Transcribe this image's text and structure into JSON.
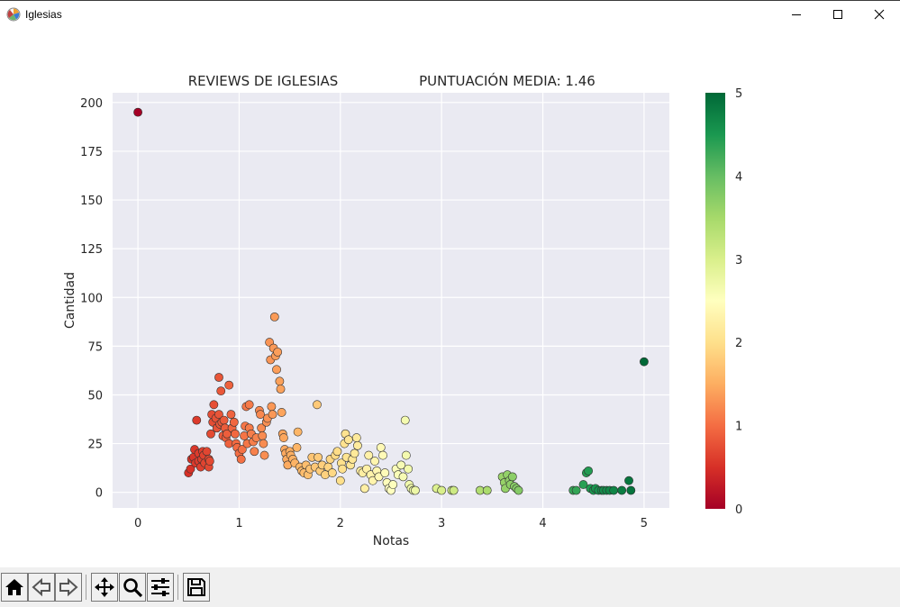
{
  "window": {
    "title": "Iglesias",
    "controls": [
      "minimize-icon",
      "maximize-icon",
      "close-icon"
    ]
  },
  "toolbar": {
    "buttons": [
      {
        "name": "home-icon"
      },
      {
        "name": "back-icon"
      },
      {
        "name": "forward-icon"
      },
      {
        "name": "pan-icon"
      },
      {
        "name": "zoom-icon"
      },
      {
        "name": "configure-subplots-icon"
      },
      {
        "name": "save-icon"
      }
    ]
  },
  "chart_data": {
    "type": "scatter",
    "title_left": "REVIEWS DE IGLESIAS",
    "title_right": "PUNTUACIÓN MEDIA: 1.46",
    "xlabel": "Notas",
    "ylabel": "Cantidad",
    "xlim": [
      -0.25,
      5.25
    ],
    "ylim": [
      -8,
      205
    ],
    "xticks": [
      0,
      1,
      2,
      3,
      4,
      5
    ],
    "yticks": [
      0,
      25,
      50,
      75,
      100,
      125,
      150,
      175,
      200
    ],
    "grid": true,
    "background": "#eaeaf2",
    "colormap": "RdYlGn",
    "colorbar": {
      "min": 0,
      "max": 5,
      "ticks": [
        0,
        1,
        2,
        3,
        4,
        5
      ]
    },
    "points": [
      [
        0.0,
        195
      ],
      [
        0.5,
        10
      ],
      [
        0.52,
        12
      ],
      [
        0.53,
        17
      ],
      [
        0.55,
        18
      ],
      [
        0.56,
        22
      ],
      [
        0.57,
        15
      ],
      [
        0.58,
        37
      ],
      [
        0.6,
        20
      ],
      [
        0.6,
        16
      ],
      [
        0.62,
        13
      ],
      [
        0.63,
        17
      ],
      [
        0.64,
        21
      ],
      [
        0.65,
        19
      ],
      [
        0.66,
        15
      ],
      [
        0.68,
        21
      ],
      [
        0.7,
        17
      ],
      [
        0.7,
        13
      ],
      [
        0.71,
        16
      ],
      [
        0.72,
        30
      ],
      [
        0.73,
        40
      ],
      [
        0.74,
        36
      ],
      [
        0.75,
        45
      ],
      [
        0.77,
        38
      ],
      [
        0.78,
        33
      ],
      [
        0.8,
        59
      ],
      [
        0.8,
        40
      ],
      [
        0.81,
        35
      ],
      [
        0.82,
        52
      ],
      [
        0.83,
        36
      ],
      [
        0.84,
        29
      ],
      [
        0.85,
        37
      ],
      [
        0.86,
        33
      ],
      [
        0.87,
        28
      ],
      [
        0.88,
        30
      ],
      [
        0.9,
        55
      ],
      [
        0.9,
        25
      ],
      [
        0.92,
        40
      ],
      [
        0.93,
        33
      ],
      [
        0.95,
        36
      ],
      [
        0.96,
        30
      ],
      [
        0.97,
        25
      ],
      [
        0.98,
        23
      ],
      [
        1.0,
        20
      ],
      [
        1.02,
        17
      ],
      [
        1.03,
        22
      ],
      [
        1.05,
        29
      ],
      [
        1.06,
        34
      ],
      [
        1.07,
        44
      ],
      [
        1.08,
        25
      ],
      [
        1.1,
        45
      ],
      [
        1.1,
        33
      ],
      [
        1.12,
        30
      ],
      [
        1.14,
        26
      ],
      [
        1.15,
        21
      ],
      [
        1.17,
        28
      ],
      [
        1.2,
        42
      ],
      [
        1.21,
        40
      ],
      [
        1.22,
        33
      ],
      [
        1.23,
        29
      ],
      [
        1.24,
        25
      ],
      [
        1.25,
        19
      ],
      [
        1.27,
        36
      ],
      [
        1.28,
        38
      ],
      [
        1.3,
        77
      ],
      [
        1.31,
        68
      ],
      [
        1.32,
        44
      ],
      [
        1.33,
        40
      ],
      [
        1.34,
        74
      ],
      [
        1.35,
        90
      ],
      [
        1.36,
        70
      ],
      [
        1.37,
        63
      ],
      [
        1.38,
        72
      ],
      [
        1.4,
        57
      ],
      [
        1.41,
        53
      ],
      [
        1.42,
        41
      ],
      [
        1.43,
        30
      ],
      [
        1.44,
        28
      ],
      [
        1.45,
        22
      ],
      [
        1.46,
        20
      ],
      [
        1.47,
        17
      ],
      [
        1.48,
        14
      ],
      [
        1.5,
        21
      ],
      [
        1.51,
        19
      ],
      [
        1.53,
        17
      ],
      [
        1.55,
        15
      ],
      [
        1.57,
        23
      ],
      [
        1.58,
        31
      ],
      [
        1.6,
        13
      ],
      [
        1.62,
        11
      ],
      [
        1.64,
        10
      ],
      [
        1.66,
        14
      ],
      [
        1.68,
        9
      ],
      [
        1.7,
        12
      ],
      [
        1.72,
        18
      ],
      [
        1.75,
        13
      ],
      [
        1.77,
        45
      ],
      [
        1.78,
        18
      ],
      [
        1.8,
        11
      ],
      [
        1.82,
        14
      ],
      [
        1.85,
        9
      ],
      [
        1.88,
        13
      ],
      [
        1.9,
        17
      ],
      [
        1.92,
        10
      ],
      [
        1.95,
        19
      ],
      [
        1.97,
        21
      ],
      [
        2.0,
        6
      ],
      [
        2.01,
        15
      ],
      [
        2.02,
        12
      ],
      [
        2.04,
        25
      ],
      [
        2.05,
        30
      ],
      [
        2.06,
        18
      ],
      [
        2.08,
        27
      ],
      [
        2.1,
        14
      ],
      [
        2.12,
        17
      ],
      [
        2.14,
        20
      ],
      [
        2.16,
        28
      ],
      [
        2.17,
        24
      ],
      [
        2.2,
        11
      ],
      [
        2.22,
        10
      ],
      [
        2.24,
        2
      ],
      [
        2.26,
        12
      ],
      [
        2.28,
        19
      ],
      [
        2.3,
        9
      ],
      [
        2.32,
        6
      ],
      [
        2.34,
        16
      ],
      [
        2.36,
        11
      ],
      [
        2.38,
        8
      ],
      [
        2.4,
        23
      ],
      [
        2.42,
        19
      ],
      [
        2.44,
        10
      ],
      [
        2.46,
        5
      ],
      [
        2.48,
        2
      ],
      [
        2.5,
        1
      ],
      [
        2.52,
        4
      ],
      [
        2.55,
        12
      ],
      [
        2.57,
        9
      ],
      [
        2.6,
        14
      ],
      [
        2.62,
        8
      ],
      [
        2.64,
        37
      ],
      [
        2.65,
        19
      ],
      [
        2.67,
        12
      ],
      [
        2.68,
        4
      ],
      [
        2.7,
        2
      ],
      [
        2.72,
        1
      ],
      [
        2.74,
        1
      ],
      [
        2.95,
        2
      ],
      [
        3.0,
        1
      ],
      [
        3.1,
        1
      ],
      [
        3.12,
        1
      ],
      [
        3.38,
        1
      ],
      [
        3.45,
        1
      ],
      [
        3.6,
        8
      ],
      [
        3.62,
        5
      ],
      [
        3.63,
        2
      ],
      [
        3.65,
        9
      ],
      [
        3.67,
        6
      ],
      [
        3.68,
        4
      ],
      [
        3.7,
        8
      ],
      [
        3.72,
        3
      ],
      [
        3.74,
        2
      ],
      [
        3.76,
        1
      ],
      [
        4.3,
        1
      ],
      [
        4.33,
        1
      ],
      [
        4.4,
        4
      ],
      [
        4.43,
        10
      ],
      [
        4.45,
        11
      ],
      [
        4.47,
        2
      ],
      [
        4.5,
        1
      ],
      [
        4.52,
        2
      ],
      [
        4.55,
        1
      ],
      [
        4.58,
        1
      ],
      [
        4.6,
        1
      ],
      [
        4.63,
        1
      ],
      [
        4.66,
        1
      ],
      [
        4.7,
        1
      ],
      [
        4.78,
        1
      ],
      [
        4.85,
        6
      ],
      [
        4.87,
        1
      ],
      [
        5.0,
        67
      ]
    ]
  }
}
